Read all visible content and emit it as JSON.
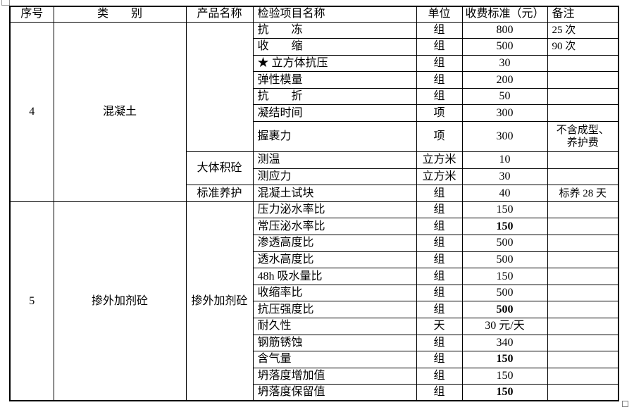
{
  "table": {
    "columns": [
      "序号",
      "类　　别",
      "产品名称",
      "检验项目名称",
      "单位",
      "收费标准（元）",
      "备注"
    ],
    "sections": [
      {
        "serial": "4",
        "category": "混凝土",
        "groups": [
          {
            "product": "",
            "rows": [
              {
                "item": "抗　　冻",
                "unit": "组",
                "fee": "800",
                "remark": "25 次"
              },
              {
                "item": "收　　缩",
                "unit": "组",
                "fee": "500",
                "remark": "90 次"
              },
              {
                "item": "★ 立方体抗压",
                "unit": "组",
                "fee": "30",
                "remark": ""
              },
              {
                "item": "弹性模量",
                "unit": "组",
                "fee": "200",
                "remark": ""
              },
              {
                "item": "抗　　折",
                "unit": "组",
                "fee": "50",
                "remark": ""
              },
              {
                "item": "凝结时间",
                "unit": "项",
                "fee": "300",
                "remark": ""
              },
              {
                "item": "握裹力",
                "unit": "项",
                "fee": "300",
                "remark": "不含成型、\n养护费",
                "remark_center": true,
                "tall": true
              }
            ]
          },
          {
            "product": "大体积砼",
            "rows": [
              {
                "item": "测温",
                "unit": "立方米",
                "fee": "10",
                "remark": ""
              },
              {
                "item": "测应力",
                "unit": "立方米",
                "fee": "30",
                "remark": ""
              }
            ]
          },
          {
            "product": "标准养护",
            "rows": [
              {
                "item": "混凝土试块",
                "unit": "组",
                "fee": "40",
                "remark": "标养 28 天",
                "remark_center": true
              }
            ]
          }
        ]
      },
      {
        "serial": "5",
        "category": "掺外加剂砼",
        "groups": [
          {
            "product": "掺外加剂砼",
            "rows": [
              {
                "item": "压力泌水率比",
                "unit": "组",
                "fee": "150",
                "remark": ""
              },
              {
                "item": "常压泌水率比",
                "unit": "组",
                "fee": "150",
                "remark": "",
                "fee_bold": true
              },
              {
                "item": "渗透高度比",
                "unit": "组",
                "fee": "500",
                "remark": ""
              },
              {
                "item": "透水高度比",
                "unit": "组",
                "fee": "500",
                "remark": ""
              },
              {
                "item": "48h 吸水量比",
                "unit": "组",
                "fee": "150",
                "remark": ""
              },
              {
                "item": "收缩率比",
                "unit": "组",
                "fee": "500",
                "remark": ""
              },
              {
                "item": "抗压强度比",
                "unit": "组",
                "fee": "500",
                "remark": "",
                "fee_bold": true
              },
              {
                "item": "耐久性",
                "unit": "天",
                "fee": "30 元/天",
                "remark": ""
              },
              {
                "item": "钢筋锈蚀",
                "unit": "组",
                "fee": "340",
                "remark": ""
              },
              {
                "item": "含气量",
                "unit": "组",
                "fee": "150",
                "remark": "",
                "fee_bold": true
              },
              {
                "item": "坍落度增加值",
                "unit": "组",
                "fee": "150",
                "remark": ""
              },
              {
                "item": "坍落度保留值",
                "unit": "组",
                "fee": "150",
                "remark": "",
                "fee_bold": true
              }
            ]
          }
        ]
      }
    ]
  },
  "handles": {
    "move_handle": "table-move-handle",
    "resize_handle": "table-resize-handle"
  },
  "colors": {
    "border": "#000000",
    "background": "#ffffff",
    "text": "#000000",
    "handle_border": "#7f7f7f"
  }
}
